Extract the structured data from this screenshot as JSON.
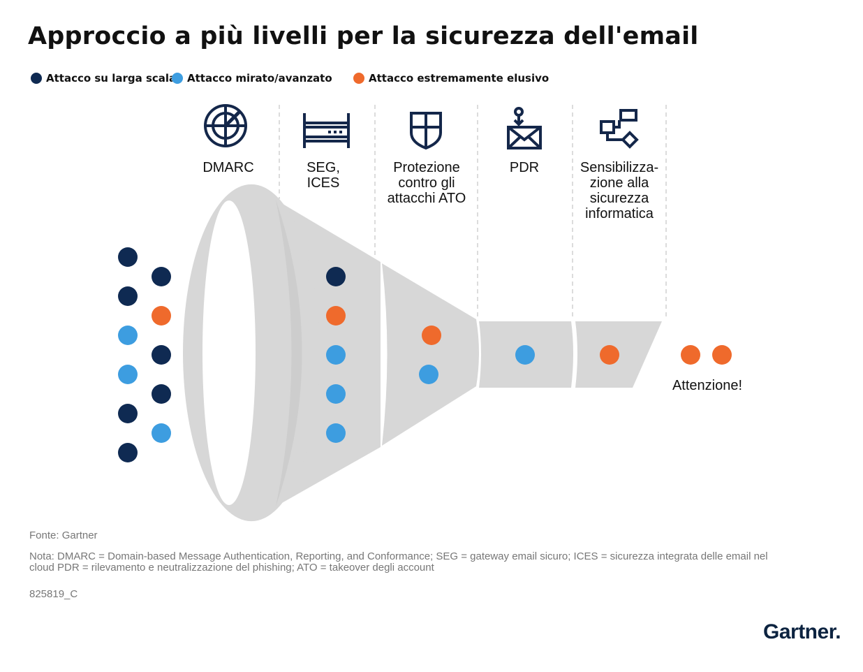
{
  "title": "Approccio a più livelli per la sicurezza dell'email",
  "legend": [
    {
      "label": "Attacco su larga scala",
      "color": "#0f2a52"
    },
    {
      "label": "Attacco mirato/avanzato",
      "color": "#3d9de0"
    },
    {
      "label": "Attacco estremamente elusivo",
      "color": "#ef6a2c"
    }
  ],
  "stages": [
    {
      "label": "DMARC",
      "icon": "radar-icon"
    },
    {
      "label": "SEG,\nICES",
      "icon": "server-rack-icon"
    },
    {
      "label": "Protezione\ncontro gli\nattacchi ATO",
      "icon": "shield-icon"
    },
    {
      "label": "PDR",
      "icon": "envelope-alert-icon"
    },
    {
      "label": "Sensibilizza-\nzione alla\nsicurezza\ninformatica",
      "icon": "flowchart-icon"
    }
  ],
  "outcome_label": "Attenzione!",
  "footer": {
    "source": "Fonte: Gartner",
    "note": "Nota: DMARC = Domain-based Message Authentication, Reporting, and Conformance; SEG = gateway email sicuro; ICES = sicurezza integrata delle email nel cloud PDR = rilevamento e neutralizzazione del phishing; ATO = takeover degli account",
    "code": "825819_C"
  },
  "logo": "Gartner."
}
